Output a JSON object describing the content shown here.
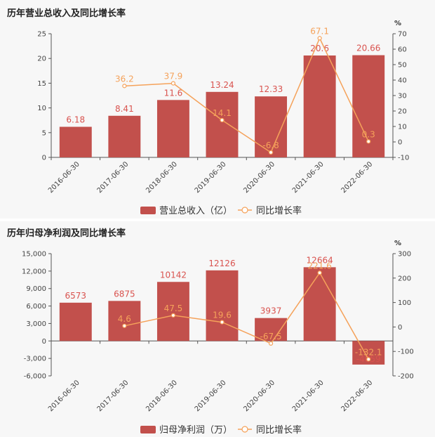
{
  "chart_data": [
    {
      "type": "bar",
      "title": "历年营业总收入及同比增长率",
      "categories": [
        "2016-06-30",
        "2017-06-30",
        "2018-06-30",
        "2019-06-30",
        "2020-06-30",
        "2021-06-30",
        "2022-06-30"
      ],
      "series": [
        {
          "name": "营业总收入（亿）",
          "type": "bar",
          "axis": "left",
          "values": [
            6.18,
            8.41,
            11.6,
            13.24,
            12.33,
            20.6,
            20.66
          ],
          "labels": [
            "6.18",
            "8.41",
            "11.6",
            "13.24",
            "12.33",
            "20.6",
            "20.66"
          ]
        },
        {
          "name": "同比增长率",
          "type": "line",
          "axis": "right",
          "values": [
            null,
            36.2,
            37.9,
            14.1,
            -6.8,
            67.1,
            0.3
          ],
          "labels": [
            "",
            "36.2",
            "37.9",
            "14.1",
            "-6.8",
            "67.1",
            "0.3"
          ]
        }
      ],
      "left_axis": {
        "ylim": [
          0,
          25
        ],
        "ticks": [
          0,
          5,
          10,
          15,
          20,
          25
        ],
        "tick_labels": [
          "0",
          "5",
          "10",
          "15",
          "20",
          "25"
        ]
      },
      "right_axis": {
        "unit": "%",
        "ylim": [
          -10,
          70
        ],
        "ticks": [
          -10,
          0,
          10,
          20,
          30,
          40,
          50,
          60,
          70
        ],
        "tick_labels": [
          "-10",
          "0",
          "10",
          "20",
          "30",
          "40",
          "50",
          "60",
          "70"
        ]
      },
      "legend_placement": "bottom",
      "grid": false
    },
    {
      "type": "bar",
      "title": "历年归母净利润及同比增长率",
      "categories": [
        "2016-06-30",
        "2017-06-30",
        "2018-06-30",
        "2019-06-30",
        "2020-06-30",
        "2021-06-30",
        "2022-06-30"
      ],
      "series": [
        {
          "name": "归母净利润（万）",
          "type": "bar",
          "axis": "left",
          "values": [
            6573,
            6875,
            10142,
            12126,
            3937,
            12664,
            -4059
          ],
          "labels": [
            "6573",
            "6875",
            "10142",
            "12126",
            "3937",
            "12664",
            "-4059"
          ]
        },
        {
          "name": "同比增长率",
          "type": "line",
          "axis": "right",
          "values": [
            null,
            4.6,
            47.5,
            19.6,
            -67.5,
            221.6,
            -132.1
          ],
          "labels": [
            "",
            "4.6",
            "47.5",
            "19.6",
            "-67.5",
            "221.6",
            "-132.1"
          ]
        }
      ],
      "left_axis": {
        "ylim": [
          -6000,
          15000
        ],
        "ticks": [
          -6000,
          -3000,
          0,
          3000,
          6000,
          9000,
          12000,
          15000
        ],
        "tick_labels": [
          "-6,000",
          "-3,000",
          "0",
          "3,000",
          "6,000",
          "9,000",
          "12,000",
          "15,000"
        ]
      },
      "right_axis": {
        "unit": "%",
        "ylim": [
          -200,
          300
        ],
        "ticks": [
          -200,
          -100,
          0,
          100,
          200,
          300
        ],
        "tick_labels": [
          "-200",
          "-100",
          "0",
          "100",
          "200",
          "300"
        ]
      },
      "legend_placement": "bottom",
      "grid": false
    }
  ],
  "colors": {
    "bar": "#c2504c",
    "line": "#f5a25a",
    "bar_label": "#d9534f"
  }
}
